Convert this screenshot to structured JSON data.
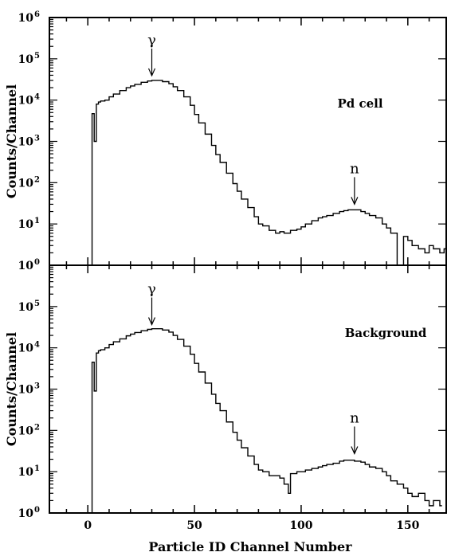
{
  "chart_data": [
    {
      "type": "step",
      "panel": "top",
      "label": "Pd cell",
      "xlabel": "Particle ID Channel Number",
      "ylabel": "Counts/Channel",
      "xlim": [
        -18,
        168
      ],
      "ylim": [
        1,
        1000000
      ],
      "yscale": "log",
      "x_ticks": [
        0,
        50,
        100,
        150
      ],
      "y_ticks": [
        {
          "base": "10",
          "exp": "0"
        },
        {
          "base": "10",
          "exp": "1"
        },
        {
          "base": "10",
          "exp": "2"
        },
        {
          "base": "10",
          "exp": "3"
        },
        {
          "base": "10",
          "exp": "4"
        },
        {
          "base": "10",
          "exp": "5"
        },
        {
          "base": "10",
          "exp": "6"
        }
      ],
      "annotations": [
        {
          "text": "γ",
          "x": 30,
          "y": 30000
        },
        {
          "text": "n",
          "x": 125,
          "y": 23
        }
      ],
      "points": [
        [
          1,
          0
        ],
        [
          2,
          4700
        ],
        [
          3,
          1000
        ],
        [
          4,
          8000
        ],
        [
          5,
          9000
        ],
        [
          6,
          9500
        ],
        [
          8,
          10000
        ],
        [
          10,
          12000
        ],
        [
          12,
          14000
        ],
        [
          15,
          17000
        ],
        [
          18,
          20000
        ],
        [
          20,
          22000
        ],
        [
          22,
          24000
        ],
        [
          25,
          27000
        ],
        [
          28,
          29000
        ],
        [
          30,
          30000
        ],
        [
          32,
          30000
        ],
        [
          35,
          28000
        ],
        [
          38,
          25000
        ],
        [
          40,
          21000
        ],
        [
          42,
          17000
        ],
        [
          45,
          12000
        ],
        [
          48,
          7500
        ],
        [
          50,
          4500
        ],
        [
          52,
          2800
        ],
        [
          55,
          1500
        ],
        [
          58,
          800
        ],
        [
          60,
          480
        ],
        [
          62,
          310
        ],
        [
          65,
          170
        ],
        [
          68,
          95
        ],
        [
          70,
          62
        ],
        [
          72,
          40
        ],
        [
          75,
          25
        ],
        [
          78,
          15
        ],
        [
          80,
          10
        ],
        [
          82,
          9
        ],
        [
          85,
          7
        ],
        [
          88,
          6
        ],
        [
          90,
          6.5
        ],
        [
          92,
          6
        ],
        [
          95,
          7
        ],
        [
          98,
          7.5
        ],
        [
          100,
          8.5
        ],
        [
          102,
          10
        ],
        [
          105,
          12
        ],
        [
          108,
          14
        ],
        [
          110,
          15
        ],
        [
          112,
          16
        ],
        [
          115,
          18
        ],
        [
          118,
          20
        ],
        [
          120,
          21
        ],
        [
          122,
          22
        ],
        [
          125,
          22
        ],
        [
          128,
          20
        ],
        [
          130,
          18
        ],
        [
          132,
          16
        ],
        [
          135,
          14
        ],
        [
          138,
          10
        ],
        [
          140,
          8
        ],
        [
          142,
          6
        ],
        [
          145,
          1
        ],
        [
          148,
          5
        ],
        [
          150,
          4
        ],
        [
          152,
          3
        ],
        [
          155,
          2.5
        ],
        [
          158,
          2
        ],
        [
          160,
          3
        ],
        [
          162,
          2.5
        ],
        [
          165,
          2
        ],
        [
          167,
          2.5
        ]
      ]
    },
    {
      "type": "step",
      "panel": "bottom",
      "label": "Background",
      "xlabel": "Particle ID Channel Number",
      "ylabel": "Counts/Channel",
      "xlim": [
        -18,
        168
      ],
      "ylim": [
        1,
        1000000
      ],
      "yscale": "log",
      "x_ticks": [
        0,
        50,
        100,
        150
      ],
      "y_ticks": [
        {
          "base": "10",
          "exp": "0"
        },
        {
          "base": "10",
          "exp": "1"
        },
        {
          "base": "10",
          "exp": "2"
        },
        {
          "base": "10",
          "exp": "3"
        },
        {
          "base": "10",
          "exp": "4"
        },
        {
          "base": "10",
          "exp": "5"
        }
      ],
      "annotations": [
        {
          "text": "γ",
          "x": 30,
          "y": 28000
        },
        {
          "text": "n",
          "x": 125,
          "y": 21
        }
      ],
      "points": [
        [
          1,
          0
        ],
        [
          2,
          4500
        ],
        [
          3,
          900
        ],
        [
          4,
          7500
        ],
        [
          5,
          8500
        ],
        [
          6,
          9000
        ],
        [
          8,
          10000
        ],
        [
          10,
          12000
        ],
        [
          12,
          14000
        ],
        [
          15,
          16500
        ],
        [
          18,
          19500
        ],
        [
          20,
          21500
        ],
        [
          22,
          23500
        ],
        [
          25,
          26000
        ],
        [
          28,
          28000
        ],
        [
          30,
          29000
        ],
        [
          32,
          29000
        ],
        [
          35,
          27000
        ],
        [
          38,
          24000
        ],
        [
          40,
          20000
        ],
        [
          42,
          16000
        ],
        [
          45,
          11000
        ],
        [
          48,
          7000
        ],
        [
          50,
          4200
        ],
        [
          52,
          2600
        ],
        [
          55,
          1400
        ],
        [
          58,
          750
        ],
        [
          60,
          450
        ],
        [
          62,
          300
        ],
        [
          65,
          160
        ],
        [
          68,
          90
        ],
        [
          70,
          58
        ],
        [
          72,
          38
        ],
        [
          75,
          24
        ],
        [
          78,
          15
        ],
        [
          80,
          11
        ],
        [
          82,
          10
        ],
        [
          85,
          8
        ],
        [
          88,
          8
        ],
        [
          90,
          7
        ],
        [
          92,
          5
        ],
        [
          94,
          3
        ],
        [
          95,
          9
        ],
        [
          98,
          10
        ],
        [
          100,
          10
        ],
        [
          102,
          11
        ],
        [
          105,
          12
        ],
        [
          108,
          13
        ],
        [
          110,
          14
        ],
        [
          112,
          15
        ],
        [
          115,
          16
        ],
        [
          118,
          18
        ],
        [
          120,
          19
        ],
        [
          122,
          19
        ],
        [
          125,
          18
        ],
        [
          128,
          17
        ],
        [
          130,
          15
        ],
        [
          132,
          13
        ],
        [
          135,
          12
        ],
        [
          138,
          10
        ],
        [
          140,
          8
        ],
        [
          142,
          6
        ],
        [
          145,
          5
        ],
        [
          148,
          4
        ],
        [
          150,
          3
        ],
        [
          152,
          2.5
        ],
        [
          155,
          3
        ],
        [
          158,
          2
        ],
        [
          160,
          1.5
        ],
        [
          162,
          2
        ],
        [
          165,
          1.5
        ]
      ]
    }
  ]
}
